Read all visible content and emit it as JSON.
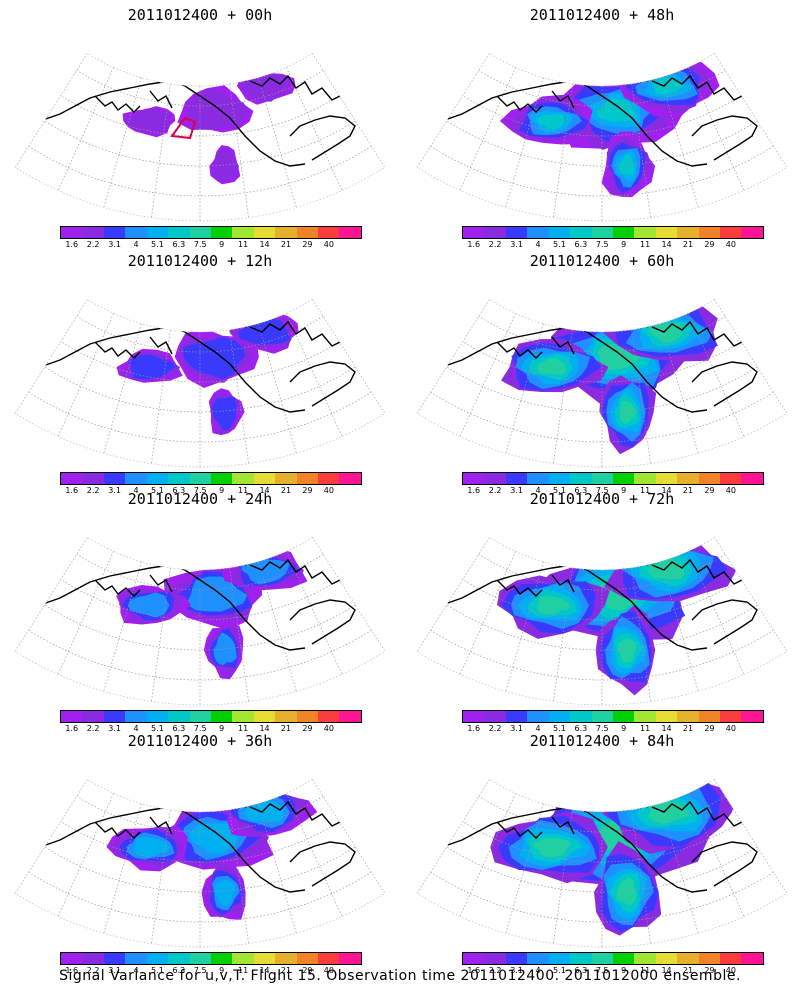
{
  "panels": [
    {
      "title": "2011012400 + 00h"
    },
    {
      "title": "2011012400 + 48h"
    },
    {
      "title": "2011012400 + 12h"
    },
    {
      "title": "2011012400 + 60h"
    },
    {
      "title": "2011012400 + 24h"
    },
    {
      "title": "2011012400 + 72h"
    },
    {
      "title": "2011012400 + 36h"
    },
    {
      "title": "2011012400 + 84h"
    }
  ],
  "colorbar": {
    "labels": [
      "1.6",
      "2.2",
      "3.1",
      "4",
      "5.1",
      "6.3",
      "7.5",
      "9",
      "11",
      "14",
      "21",
      "29",
      "40"
    ],
    "colors": [
      "#a020f0",
      "#8a2be2",
      "#3a3aff",
      "#1e90ff",
      "#00b0f0",
      "#00c8c8",
      "#20d0a0",
      "#00d000",
      "#a0e632",
      "#e6dc32",
      "#e6af2d",
      "#f08228",
      "#fa3c3c",
      "#ff1493"
    ]
  },
  "footer": "Signal Variance for u,v,T. Flight 15. Observation time 2011012400. 2011012000 ensemble."
}
